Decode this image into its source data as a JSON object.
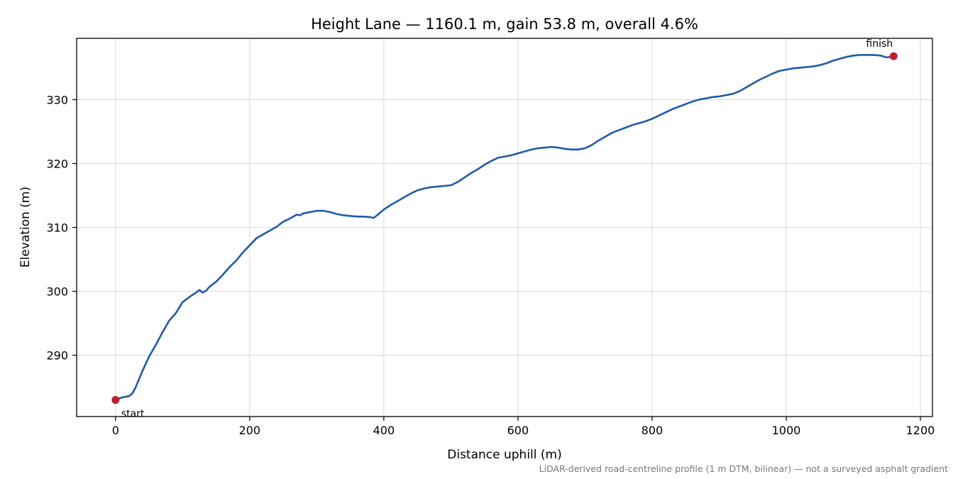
{
  "chart_data": {
    "type": "line",
    "title": "Height Lane — 1160.1 m, gain 53.8 m, overall 4.6%",
    "xlabel": "Distance uphill (m)",
    "ylabel": "Elevation (m)",
    "xlim": [
      -58,
      1218
    ],
    "ylim": [
      280.4,
      339.6
    ],
    "xticks": [
      0,
      200,
      400,
      600,
      800,
      1000,
      1200
    ],
    "yticks": [
      290,
      300,
      310,
      320,
      330
    ],
    "grid": true,
    "footnote": "LiDAR-derived road-centreline profile (1 m DTM, bilinear) — not a surveyed asphalt gradient",
    "colors": {
      "line": "#1f5aab",
      "markers": "#c0202a"
    },
    "series": [
      {
        "x": [
          0,
          10,
          20,
          25,
          30,
          40,
          50,
          60,
          70,
          80,
          90,
          100,
          110,
          120,
          125,
          130,
          135,
          140,
          150,
          160,
          170,
          180,
          190,
          200,
          210,
          220,
          230,
          240,
          250,
          260,
          270,
          275,
          280,
          285,
          290,
          300,
          310,
          320,
          330,
          340,
          350,
          360,
          370,
          380,
          385,
          390,
          400,
          410,
          420,
          430,
          440,
          450,
          460,
          470,
          480,
          490,
          500,
          510,
          520,
          530,
          540,
          550,
          560,
          570,
          580,
          590,
          600,
          610,
          620,
          630,
          640,
          650,
          660,
          670,
          680,
          690,
          700,
          710,
          720,
          730,
          740,
          750,
          760,
          770,
          780,
          790,
          800,
          810,
          820,
          830,
          840,
          850,
          860,
          870,
          880,
          890,
          900,
          910,
          920,
          930,
          940,
          950,
          960,
          970,
          980,
          990,
          1000,
          1010,
          1020,
          1030,
          1040,
          1050,
          1060,
          1070,
          1080,
          1090,
          1100,
          1110,
          1120,
          1130,
          1140,
          1150,
          1160
        ],
        "y": [
          283.0,
          283.4,
          283.6,
          284.0,
          285.0,
          287.5,
          289.8,
          291.6,
          293.6,
          295.4,
          296.6,
          298.3,
          299.1,
          299.8,
          300.2,
          299.8,
          300.1,
          300.7,
          301.5,
          302.6,
          303.8,
          304.8,
          306.1,
          307.2,
          308.3,
          308.9,
          309.5,
          310.1,
          310.9,
          311.4,
          312.0,
          311.9,
          312.2,
          312.3,
          312.4,
          312.6,
          312.6,
          312.4,
          312.1,
          311.9,
          311.8,
          311.7,
          311.7,
          311.6,
          311.5,
          311.9,
          312.8,
          313.5,
          314.1,
          314.7,
          315.3,
          315.8,
          316.1,
          316.3,
          316.4,
          316.5,
          316.6,
          317.1,
          317.8,
          318.5,
          319.1,
          319.8,
          320.4,
          320.9,
          321.1,
          321.3,
          321.6,
          321.9,
          322.2,
          322.4,
          322.5,
          322.6,
          322.5,
          322.3,
          322.2,
          322.2,
          322.4,
          322.9,
          323.6,
          324.2,
          324.8,
          325.2,
          325.6,
          326.0,
          326.3,
          326.6,
          327.0,
          327.5,
          328.0,
          328.5,
          328.9,
          329.3,
          329.7,
          330.0,
          330.2,
          330.4,
          330.5,
          330.7,
          330.9,
          331.3,
          331.9,
          332.5,
          333.1,
          333.6,
          334.1,
          334.5,
          334.7,
          334.9,
          335.0,
          335.1,
          335.2,
          335.4,
          335.7,
          336.1,
          336.4,
          336.7,
          336.9,
          337.0,
          337.0,
          337.0,
          336.9,
          336.6,
          336.8
        ]
      }
    ],
    "annotations": [
      {
        "label": "start",
        "x": 0,
        "y": 283.0
      },
      {
        "label": "finish",
        "x": 1160.1,
        "y": 336.8
      }
    ]
  }
}
